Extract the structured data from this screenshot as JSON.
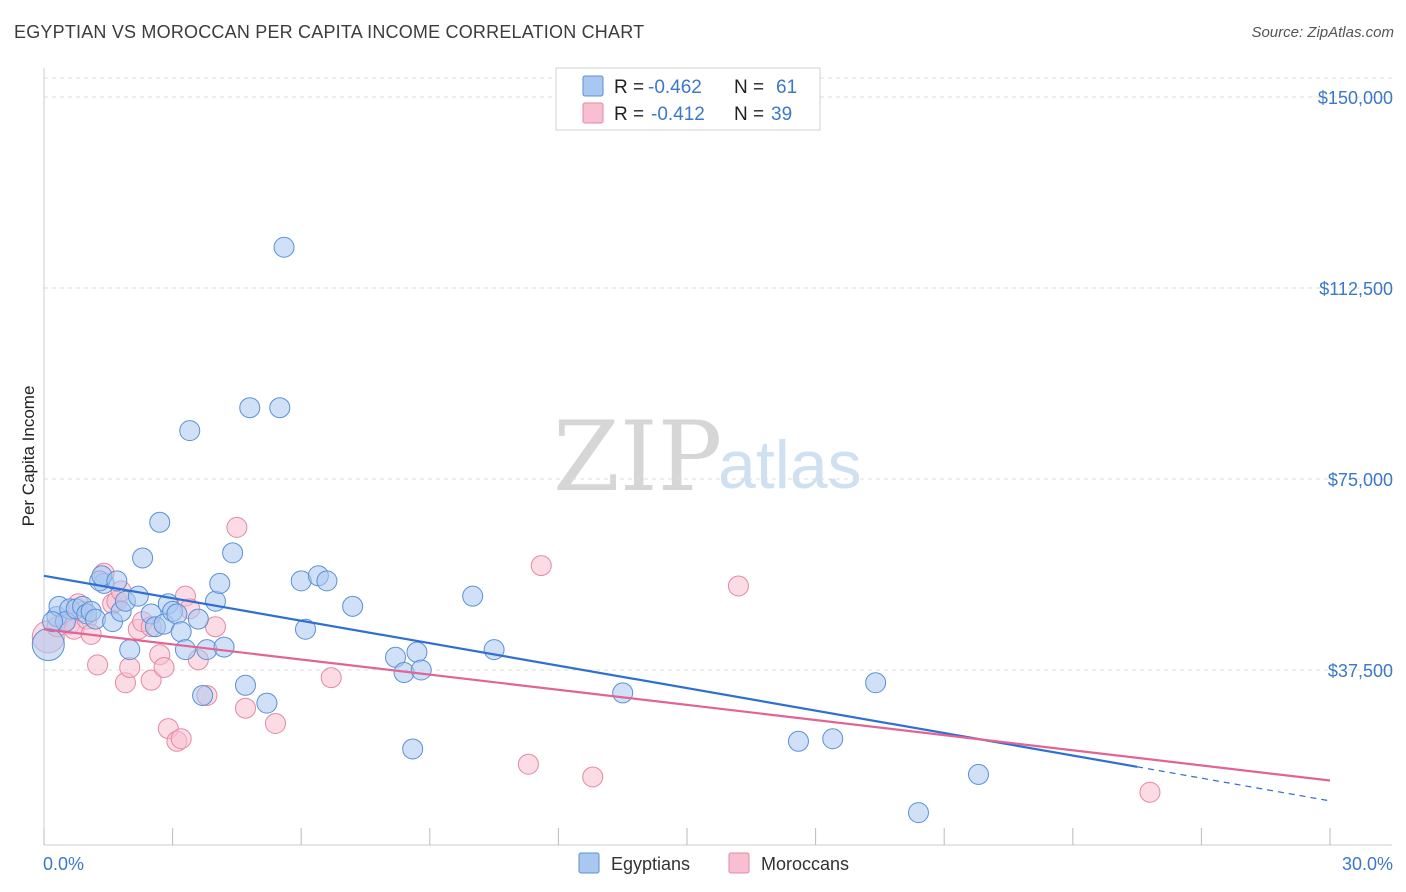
{
  "title": "EGYPTIAN VS MOROCCAN PER CAPITA INCOME CORRELATION CHART",
  "source": "Source: ZipAtlas.com",
  "watermark": {
    "zip": "ZIP",
    "atlas": "atlas"
  },
  "colors": {
    "egyptians_fill": "#a9c8f0",
    "egyptians_stroke": "#5b8fd6",
    "egyptians_line": "#2f6fd1",
    "moroccans_fill": "#f7bfd0",
    "moroccans_stroke": "#e687a5",
    "moroccans_line": "#e06494",
    "tick_text": "#3b78c9"
  },
  "legend": {
    "rows": [
      {
        "r_label": "R =",
        "r_value": "-0.462",
        "n_label": "N =",
        "n_value": "61"
      },
      {
        "r_label": "R =",
        "r_value": "-0.412",
        "n_label": "N =",
        "n_value": "39"
      }
    ]
  },
  "chart_data": {
    "type": "scatter",
    "title": "EGYPTIAN VS MOROCCAN PER CAPITA INCOME CORRELATION CHART",
    "xlabel": "",
    "ylabel": "Per Capita Income",
    "xlim": [
      0,
      30
    ],
    "ylim": [
      0,
      155000
    ],
    "x_tick_labels": [
      "0.0%",
      "30.0%"
    ],
    "y_ticks": [
      37500,
      75000,
      112500,
      150000
    ],
    "y_tick_labels": [
      "$37,500",
      "$75,000",
      "$112,500",
      "$150,000"
    ],
    "grid": true,
    "legend_position": "bottom-center",
    "series": [
      {
        "name": "Egyptians",
        "r": -0.462,
        "n": 61,
        "trend": {
          "x0": 0,
          "y0": 56000,
          "x1": 25.5,
          "y1": 18500,
          "dash_to_x": 30,
          "dash_to_y": 11800
        },
        "points": [
          [
            0.1,
            42500,
            16
          ],
          [
            0.3,
            48000,
            10
          ],
          [
            0.35,
            50000,
            10
          ],
          [
            0.6,
            49500,
            10
          ],
          [
            0.5,
            47000,
            10
          ],
          [
            0.75,
            49500,
            10
          ],
          [
            0.9,
            50000,
            10
          ],
          [
            1.0,
            48500,
            10
          ],
          [
            1.1,
            49000,
            10
          ],
          [
            1.2,
            47500,
            10
          ],
          [
            1.4,
            54500,
            10
          ],
          [
            1.3,
            55000,
            10
          ],
          [
            1.35,
            56000,
            10
          ],
          [
            1.7,
            55000,
            10
          ],
          [
            1.6,
            47000,
            10
          ],
          [
            1.8,
            49000,
            10
          ],
          [
            1.9,
            51000,
            10
          ],
          [
            2.0,
            41500,
            10
          ],
          [
            2.2,
            52000,
            10
          ],
          [
            2.3,
            59500,
            10
          ],
          [
            2.5,
            48500,
            10
          ],
          [
            2.6,
            46000,
            10
          ],
          [
            2.7,
            66500,
            10
          ],
          [
            2.8,
            46500,
            10
          ],
          [
            2.9,
            50500,
            10
          ],
          [
            3.0,
            49000,
            10
          ],
          [
            3.1,
            48500,
            10
          ],
          [
            3.2,
            45000,
            10
          ],
          [
            3.3,
            41500,
            10
          ],
          [
            3.4,
            84500,
            10
          ],
          [
            3.6,
            47500,
            10
          ],
          [
            3.7,
            32500,
            10
          ],
          [
            3.8,
            41500,
            10
          ],
          [
            4.0,
            51000,
            10
          ],
          [
            4.1,
            54500,
            10
          ],
          [
            4.2,
            42000,
            10
          ],
          [
            4.4,
            60500,
            10
          ],
          [
            4.7,
            34500,
            10
          ],
          [
            4.8,
            89000,
            10
          ],
          [
            5.2,
            31000,
            10
          ],
          [
            5.5,
            89000,
            10
          ],
          [
            5.6,
            120500,
            10
          ],
          [
            6.0,
            55000,
            10
          ],
          [
            6.1,
            45500,
            10
          ],
          [
            6.4,
            56000,
            10
          ],
          [
            6.6,
            55000,
            10
          ],
          [
            7.2,
            50000,
            10
          ],
          [
            8.2,
            40000,
            10
          ],
          [
            8.4,
            37000,
            10
          ],
          [
            8.6,
            22000,
            10
          ],
          [
            8.7,
            41000,
            10
          ],
          [
            8.8,
            37500,
            10
          ],
          [
            10.0,
            52000,
            10
          ],
          [
            10.5,
            41500,
            10
          ],
          [
            13.5,
            33000,
            10
          ],
          [
            17.6,
            23500,
            10
          ],
          [
            18.4,
            24000,
            10
          ],
          [
            19.4,
            35000,
            10
          ],
          [
            20.4,
            9500,
            10
          ],
          [
            21.8,
            17000,
            10
          ],
          [
            0.2,
            47000,
            10
          ]
        ]
      },
      {
        "name": "Moroccans",
        "r": -0.412,
        "n": 39,
        "trend": {
          "x0": 0,
          "y0": 45500,
          "x1": 30,
          "y1": 15800
        },
        "points": [
          [
            0.1,
            44000,
            16
          ],
          [
            0.3,
            46000,
            10
          ],
          [
            0.5,
            47000,
            10
          ],
          [
            0.6,
            46500,
            10
          ],
          [
            0.7,
            45500,
            10
          ],
          [
            0.8,
            50500,
            10
          ],
          [
            1.0,
            47500,
            10
          ],
          [
            1.1,
            44500,
            10
          ],
          [
            1.25,
            38500,
            10
          ],
          [
            1.4,
            56500,
            10
          ],
          [
            1.6,
            50500,
            10
          ],
          [
            1.7,
            51000,
            10
          ],
          [
            1.8,
            53000,
            10
          ],
          [
            1.9,
            35000,
            10
          ],
          [
            2.0,
            38000,
            10
          ],
          [
            2.2,
            45500,
            10
          ],
          [
            2.3,
            47000,
            10
          ],
          [
            2.5,
            46000,
            10
          ],
          [
            2.5,
            35500,
            10
          ],
          [
            2.7,
            40500,
            10
          ],
          [
            2.8,
            38000,
            10
          ],
          [
            2.9,
            26000,
            10
          ],
          [
            3.1,
            23500,
            10
          ],
          [
            3.2,
            24000,
            10
          ],
          [
            3.3,
            52000,
            10
          ],
          [
            3.4,
            49500,
            10
          ],
          [
            3.6,
            39500,
            10
          ],
          [
            3.8,
            32500,
            10
          ],
          [
            4.0,
            46000,
            10
          ],
          [
            4.5,
            65500,
            10
          ],
          [
            4.7,
            30000,
            10
          ],
          [
            5.4,
            27000,
            10
          ],
          [
            6.7,
            36000,
            10
          ],
          [
            11.3,
            19000,
            10
          ],
          [
            11.6,
            58000,
            10
          ],
          [
            12.8,
            16500,
            10
          ],
          [
            16.2,
            54000,
            10
          ],
          [
            25.8,
            13500,
            10
          ],
          [
            0.9,
            49000,
            10
          ]
        ]
      }
    ]
  }
}
